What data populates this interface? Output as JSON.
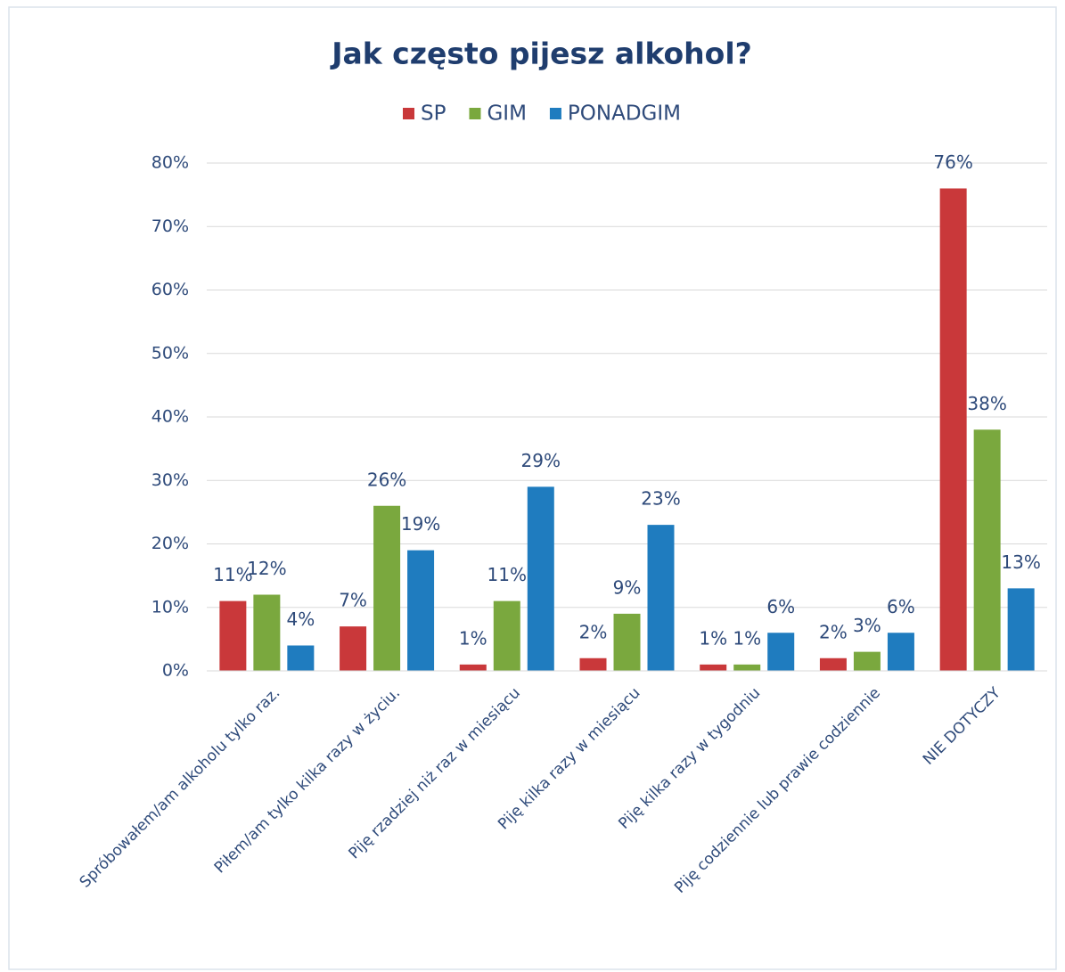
{
  "chart_data": {
    "type": "bar",
    "title": "Jak często pijesz alkohol?",
    "categories": [
      "Spróbowałem/am alkoholu tylko raz.",
      "Piłem/am tylko kilka razy w życiu.",
      "Piję rzadziej niż raz w miesiącu",
      "Piję kilka razy w miesiącu",
      "Piję kilka razy w tygodniu",
      "Piję codziennie lub prawie codziennie",
      "NIE DOTYCZY"
    ],
    "series": [
      {
        "name": "SP",
        "color": "#c9383a",
        "values": [
          11,
          7,
          1,
          2,
          1,
          2,
          76
        ],
        "value_labels": [
          "11%",
          "7%",
          "1%",
          "2%",
          "1%",
          "2%",
          "76%"
        ]
      },
      {
        "name": "GIM",
        "color": "#7aa83e",
        "values": [
          12,
          26,
          11,
          9,
          1,
          3,
          38
        ],
        "value_labels": [
          "12%",
          "26%",
          "11%",
          "9%",
          "1%",
          "3%",
          "38%"
        ]
      },
      {
        "name": "PONADGIM",
        "color": "#1f7cbf",
        "values": [
          4,
          19,
          29,
          23,
          6,
          6,
          13
        ],
        "value_labels": [
          "4%",
          "19%",
          "29%",
          "23%",
          "6%",
          "6%",
          "13%"
        ]
      }
    ],
    "ylim": [
      0,
      80
    ],
    "yticks": [
      {
        "value": 0,
        "label": "0%"
      },
      {
        "value": 10,
        "label": "10%"
      },
      {
        "value": 20,
        "label": "20%"
      },
      {
        "value": 30,
        "label": "30%"
      },
      {
        "value": 40,
        "label": "40%"
      },
      {
        "value": 50,
        "label": "50%"
      },
      {
        "value": 60,
        "label": "60%"
      },
      {
        "value": 70,
        "label": "70%"
      },
      {
        "value": 80,
        "label": "80%"
      }
    ],
    "grid": true,
    "legend": "top"
  }
}
